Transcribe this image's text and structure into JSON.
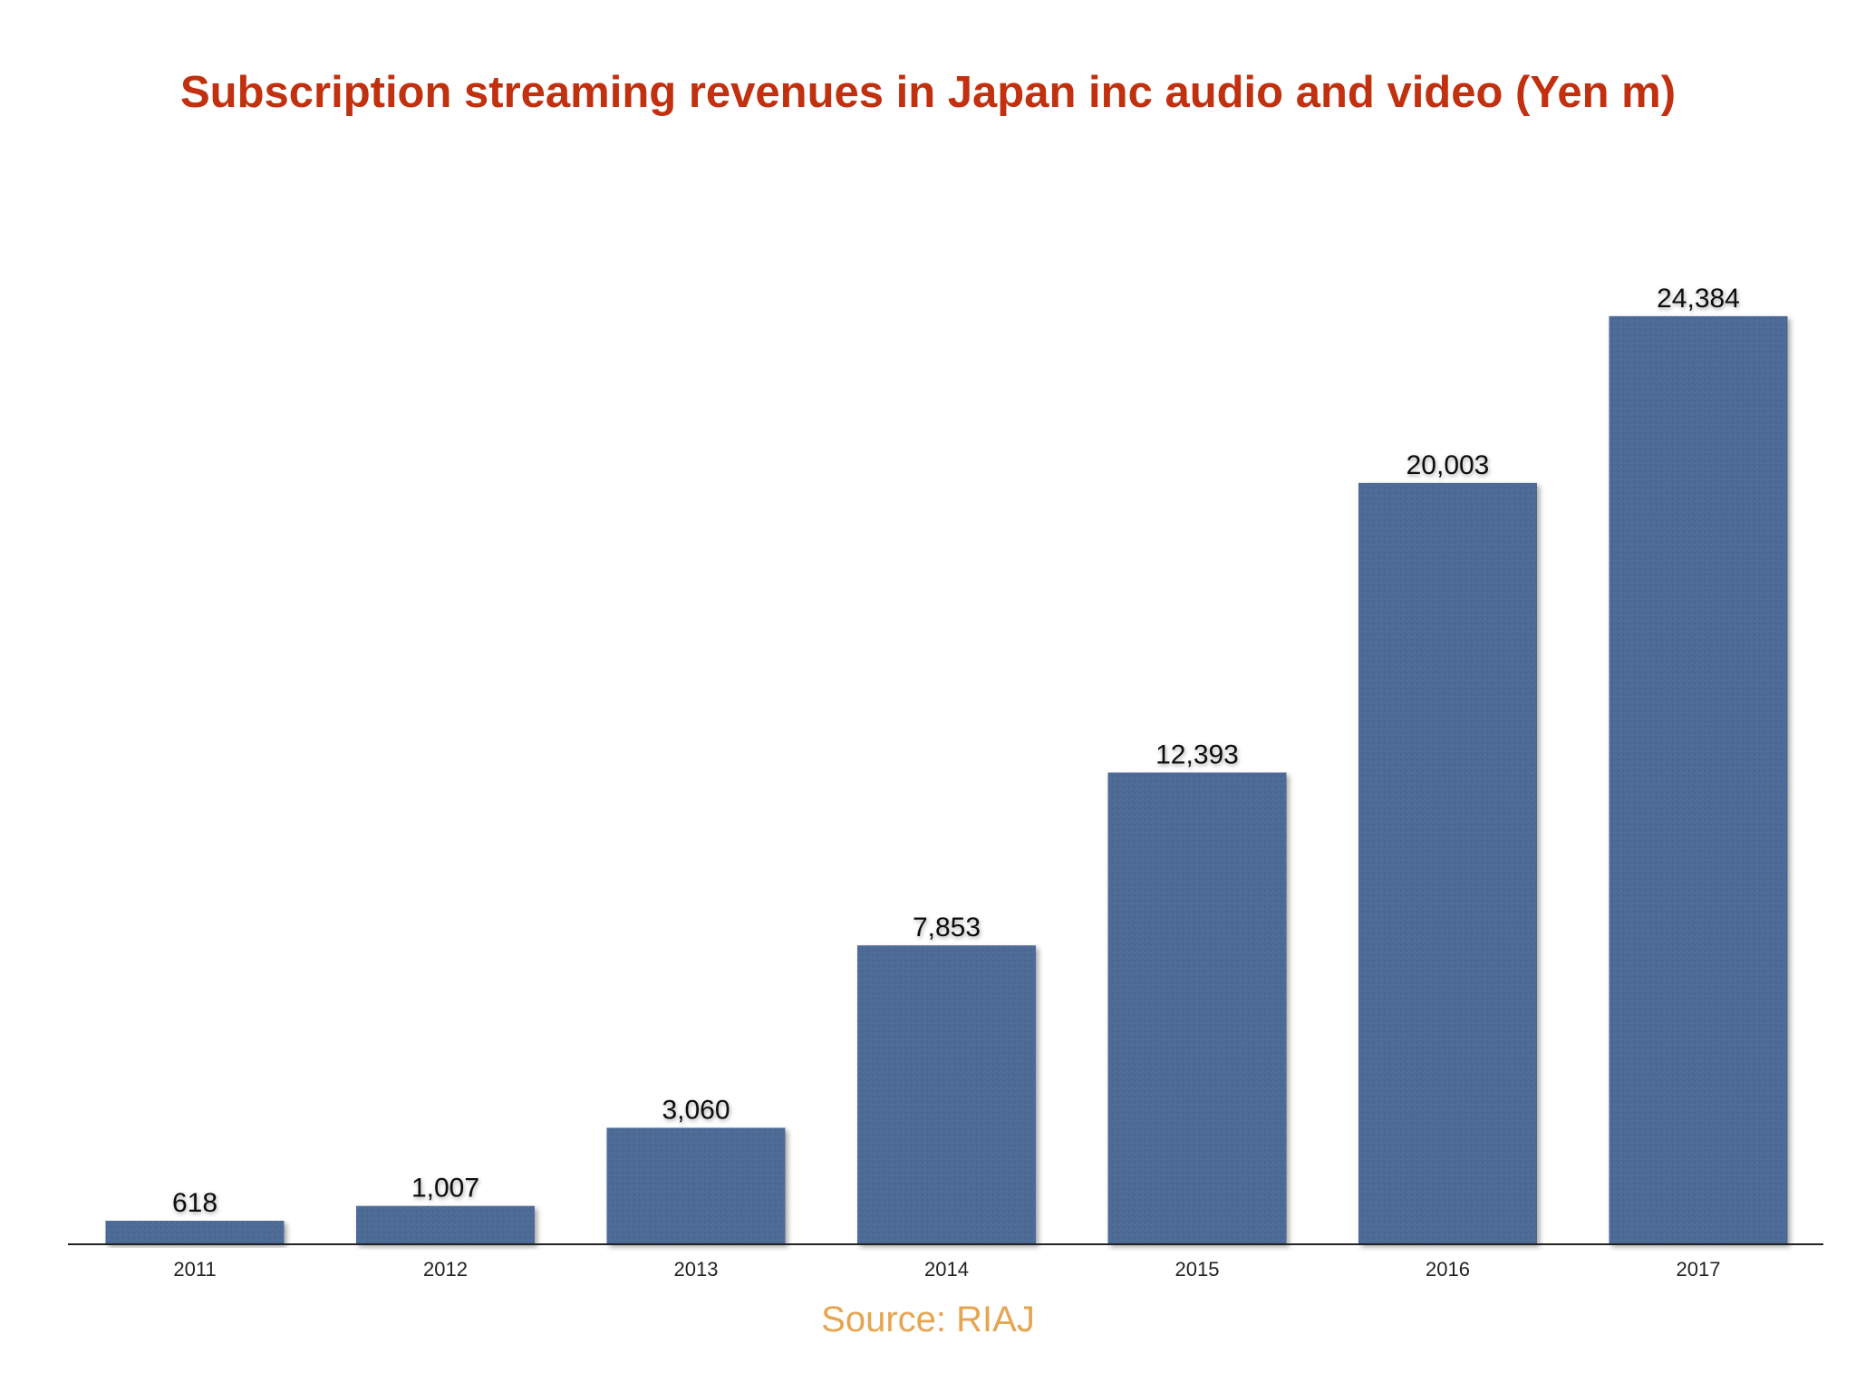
{
  "chart_data": {
    "type": "bar",
    "title": "Subscription streaming revenues in Japan inc audio and video (Yen m)",
    "source": "Source: RIAJ",
    "categories": [
      "2011",
      "2012",
      "2013",
      "2014",
      "2015",
      "2016",
      "2017"
    ],
    "values": [
      618,
      1007,
      3060,
      7853,
      12393,
      20003,
      24384
    ],
    "value_labels": [
      "618",
      "1,007",
      "3,060",
      "7,853",
      "12,393",
      "20,003",
      "24,384"
    ],
    "xlabel": "",
    "ylabel": "",
    "ylim": [
      0,
      29000
    ],
    "grid": false,
    "legend": "none",
    "y_axis_shown": false
  },
  "colors": {
    "bar": "#4d6a95",
    "bar_dark": "#415c86",
    "title": "#c1300f",
    "source": "#e6a550",
    "axis": "#222222"
  }
}
